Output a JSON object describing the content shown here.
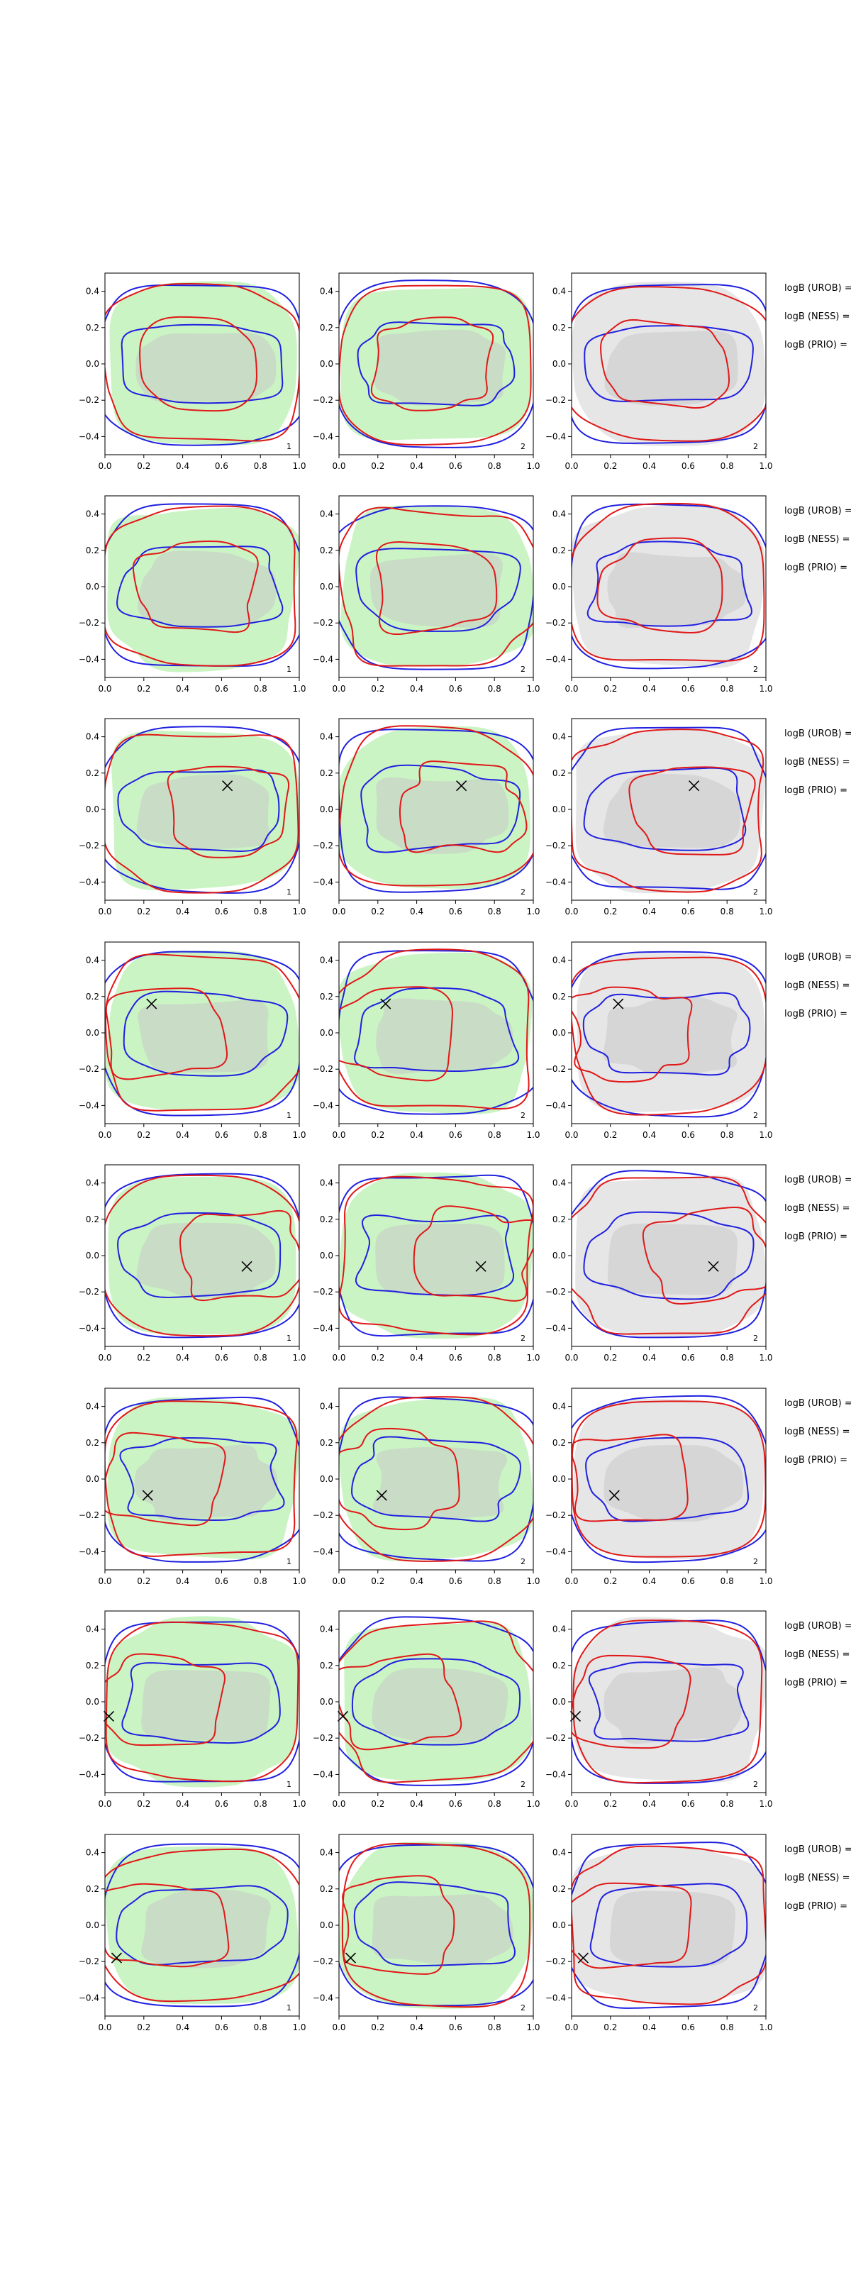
{
  "figure": {
    "background": "#ffffff",
    "colors": {
      "model_fill": "#b9f0b0",
      "ref_fill": "#c9c9c9",
      "model_outline": "#2020e0",
      "ref_outline": "#e01818",
      "frame": "#222222",
      "neutral_fill": "#e6e6e6"
    },
    "side_labels": [
      "logB (UROB) =",
      "logB (NESS) =",
      "logB (PRIO) ="
    ]
  },
  "chart_data": [
    {
      "type": "contour",
      "row": 1,
      "col": 1,
      "corner_label": "1",
      "xlim": [
        0,
        1
      ],
      "ylim": [
        -0.5,
        0.5
      ],
      "xticks": [
        "0.0",
        "0.2",
        "0.4",
        "0.6",
        "0.8",
        "1.0"
      ],
      "yticks": [
        "0.4",
        "0.2",
        "0.0",
        "−0.2",
        "−0.4"
      ],
      "panel_fill": "green",
      "marker": null
    },
    {
      "type": "contour",
      "row": 1,
      "col": 2,
      "corner_label": "2",
      "xlim": [
        0,
        1
      ],
      "ylim": [
        -0.5,
        0.5
      ],
      "xticks": [
        "0.0",
        "0.2",
        "0.4",
        "0.6",
        "0.8",
        "1.0"
      ],
      "yticks": [
        "0.4",
        "0.2",
        "0.0",
        "−0.2",
        "−0.4"
      ],
      "panel_fill": "green",
      "marker": null
    },
    {
      "type": "contour",
      "row": 1,
      "col": 3,
      "corner_label": "2",
      "xlim": [
        0,
        1
      ],
      "ylim": [
        -0.5,
        0.5
      ],
      "xticks": [
        "0.0",
        "0.2",
        "0.4",
        "0.6",
        "0.8",
        "1.0"
      ],
      "yticks": [
        "0.4",
        "0.2",
        "0.0",
        "−0.2",
        "−0.4"
      ],
      "panel_fill": "grey",
      "marker": null
    },
    {
      "type": "contour",
      "row": 2,
      "col": 1,
      "corner_label": "1",
      "xlim": [
        0,
        1
      ],
      "ylim": [
        -0.5,
        0.5
      ],
      "xticks": [
        "0.0",
        "0.2",
        "0.4",
        "0.6",
        "0.8",
        "1.0"
      ],
      "yticks": [
        "0.4",
        "0.2",
        "0.0",
        "−0.2",
        "−0.4"
      ],
      "panel_fill": "green",
      "marker": null
    },
    {
      "type": "contour",
      "row": 2,
      "col": 2,
      "corner_label": "2",
      "xlim": [
        0,
        1
      ],
      "ylim": [
        -0.5,
        0.5
      ],
      "xticks": [
        "0.0",
        "0.2",
        "0.4",
        "0.6",
        "0.8",
        "1.0"
      ],
      "yticks": [
        "0.4",
        "0.2",
        "0.0",
        "−0.2",
        "−0.4"
      ],
      "panel_fill": "green",
      "marker": null
    },
    {
      "type": "contour",
      "row": 2,
      "col": 3,
      "corner_label": "2",
      "xlim": [
        0,
        1
      ],
      "ylim": [
        -0.5,
        0.5
      ],
      "xticks": [
        "0.0",
        "0.2",
        "0.4",
        "0.6",
        "0.8",
        "1.0"
      ],
      "yticks": [
        "0.4",
        "0.2",
        "0.0",
        "−0.2",
        "−0.4"
      ],
      "panel_fill": "grey",
      "marker": null
    },
    {
      "type": "contour",
      "row": 3,
      "col": 1,
      "corner_label": "1",
      "xlim": [
        0,
        1
      ],
      "ylim": [
        -0.5,
        0.5
      ],
      "xticks": [
        "0.0",
        "0.2",
        "0.4",
        "0.6",
        "0.8",
        "1.0"
      ],
      "yticks": [
        "0.4",
        "0.2",
        "0.0",
        "−0.2",
        "−0.4"
      ],
      "panel_fill": "green",
      "marker": {
        "x": 0.63,
        "y": 0.13
      }
    },
    {
      "type": "contour",
      "row": 3,
      "col": 2,
      "corner_label": "2",
      "xlim": [
        0,
        1
      ],
      "ylim": [
        -0.5,
        0.5
      ],
      "xticks": [
        "0.0",
        "0.2",
        "0.4",
        "0.6",
        "0.8",
        "1.0"
      ],
      "yticks": [
        "0.4",
        "0.2",
        "0.0",
        "−0.2",
        "−0.4"
      ],
      "panel_fill": "green",
      "marker": {
        "x": 0.63,
        "y": 0.13
      }
    },
    {
      "type": "contour",
      "row": 3,
      "col": 3,
      "corner_label": "2",
      "xlim": [
        0,
        1
      ],
      "ylim": [
        -0.5,
        0.5
      ],
      "xticks": [
        "0.0",
        "0.2",
        "0.4",
        "0.6",
        "0.8",
        "1.0"
      ],
      "yticks": [
        "0.4",
        "0.2",
        "0.0",
        "−0.2",
        "−0.4"
      ],
      "panel_fill": "grey",
      "marker": {
        "x": 0.63,
        "y": 0.13
      }
    },
    {
      "type": "contour",
      "row": 4,
      "col": 1,
      "corner_label": "1",
      "xlim": [
        0,
        1
      ],
      "ylim": [
        -0.5,
        0.5
      ],
      "xticks": [
        "0.0",
        "0.2",
        "0.4",
        "0.6",
        "0.8",
        "1.0"
      ],
      "yticks": [
        "0.4",
        "0.2",
        "0.0",
        "−0.2",
        "−0.4"
      ],
      "panel_fill": "green",
      "marker": {
        "x": 0.24,
        "y": 0.16
      }
    },
    {
      "type": "contour",
      "row": 4,
      "col": 2,
      "corner_label": "2",
      "xlim": [
        0,
        1
      ],
      "ylim": [
        -0.5,
        0.5
      ],
      "xticks": [
        "0.0",
        "0.2",
        "0.4",
        "0.6",
        "0.8",
        "1.0"
      ],
      "yticks": [
        "0.4",
        "0.2",
        "0.0",
        "−0.2",
        "−0.4"
      ],
      "panel_fill": "green",
      "marker": {
        "x": 0.24,
        "y": 0.16
      }
    },
    {
      "type": "contour",
      "row": 4,
      "col": 3,
      "corner_label": "2",
      "xlim": [
        0,
        1
      ],
      "ylim": [
        -0.5,
        0.5
      ],
      "xticks": [
        "0.0",
        "0.2",
        "0.4",
        "0.6",
        "0.8",
        "1.0"
      ],
      "yticks": [
        "0.4",
        "0.2",
        "0.0",
        "−0.2",
        "−0.4"
      ],
      "panel_fill": "grey",
      "marker": {
        "x": 0.24,
        "y": 0.16
      }
    },
    {
      "type": "contour",
      "row": 5,
      "col": 1,
      "corner_label": "1",
      "xlim": [
        0,
        1
      ],
      "ylim": [
        -0.5,
        0.5
      ],
      "xticks": [
        "0.0",
        "0.2",
        "0.4",
        "0.6",
        "0.8",
        "1.0"
      ],
      "yticks": [
        "0.4",
        "0.2",
        "0.0",
        "−0.2",
        "−0.4"
      ],
      "panel_fill": "green",
      "marker": {
        "x": 0.73,
        "y": -0.06
      }
    },
    {
      "type": "contour",
      "row": 5,
      "col": 2,
      "corner_label": "2",
      "xlim": [
        0,
        1
      ],
      "ylim": [
        -0.5,
        0.5
      ],
      "xticks": [
        "0.0",
        "0.2",
        "0.4",
        "0.6",
        "0.8",
        "1.0"
      ],
      "yticks": [
        "0.4",
        "0.2",
        "0.0",
        "−0.2",
        "−0.4"
      ],
      "panel_fill": "green",
      "marker": {
        "x": 0.73,
        "y": -0.06
      }
    },
    {
      "type": "contour",
      "row": 5,
      "col": 3,
      "corner_label": "2",
      "xlim": [
        0,
        1
      ],
      "ylim": [
        -0.5,
        0.5
      ],
      "xticks": [
        "0.0",
        "0.2",
        "0.4",
        "0.6",
        "0.8",
        "1.0"
      ],
      "yticks": [
        "0.4",
        "0.2",
        "0.0",
        "−0.2",
        "−0.4"
      ],
      "panel_fill": "grey",
      "marker": {
        "x": 0.73,
        "y": -0.06
      }
    },
    {
      "type": "contour",
      "row": 6,
      "col": 1,
      "corner_label": "1",
      "xlim": [
        0,
        1
      ],
      "ylim": [
        -0.5,
        0.5
      ],
      "xticks": [
        "0.0",
        "0.2",
        "0.4",
        "0.6",
        "0.8",
        "1.0"
      ],
      "yticks": [
        "0.4",
        "0.2",
        "0.0",
        "−0.2",
        "−0.4"
      ],
      "panel_fill": "green",
      "marker": {
        "x": 0.22,
        "y": -0.09
      }
    },
    {
      "type": "contour",
      "row": 6,
      "col": 2,
      "corner_label": "2",
      "xlim": [
        0,
        1
      ],
      "ylim": [
        -0.5,
        0.5
      ],
      "xticks": [
        "0.0",
        "0.2",
        "0.4",
        "0.6",
        "0.8",
        "1.0"
      ],
      "yticks": [
        "0.4",
        "0.2",
        "0.0",
        "−0.2",
        "−0.4"
      ],
      "panel_fill": "green",
      "marker": {
        "x": 0.22,
        "y": -0.09
      }
    },
    {
      "type": "contour",
      "row": 6,
      "col": 3,
      "corner_label": "2",
      "xlim": [
        0,
        1
      ],
      "ylim": [
        -0.5,
        0.5
      ],
      "xticks": [
        "0.0",
        "0.2",
        "0.4",
        "0.6",
        "0.8",
        "1.0"
      ],
      "yticks": [
        "0.4",
        "0.2",
        "0.0",
        "−0.2",
        "−0.4"
      ],
      "panel_fill": "grey",
      "marker": {
        "x": 0.22,
        "y": -0.09
      }
    },
    {
      "type": "contour",
      "row": 7,
      "col": 1,
      "corner_label": "1",
      "xlim": [
        0,
        1
      ],
      "ylim": [
        -0.5,
        0.5
      ],
      "xticks": [
        "0.0",
        "0.2",
        "0.4",
        "0.6",
        "0.8",
        "1.0"
      ],
      "yticks": [
        "0.4",
        "0.2",
        "0.0",
        "−0.2",
        "−0.4"
      ],
      "panel_fill": "green",
      "marker": {
        "x": 0.02,
        "y": -0.08
      }
    },
    {
      "type": "contour",
      "row": 7,
      "col": 2,
      "corner_label": "2",
      "xlim": [
        0,
        1
      ],
      "ylim": [
        -0.5,
        0.5
      ],
      "xticks": [
        "0.0",
        "0.2",
        "0.4",
        "0.6",
        "0.8",
        "1.0"
      ],
      "yticks": [
        "0.4",
        "0.2",
        "0.0",
        "−0.2",
        "−0.4"
      ],
      "panel_fill": "green",
      "marker": {
        "x": 0.02,
        "y": -0.08
      }
    },
    {
      "type": "contour",
      "row": 7,
      "col": 3,
      "corner_label": "2",
      "xlim": [
        0,
        1
      ],
      "ylim": [
        -0.5,
        0.5
      ],
      "xticks": [
        "0.0",
        "0.2",
        "0.4",
        "0.6",
        "0.8",
        "1.0"
      ],
      "yticks": [
        "0.4",
        "0.2",
        "0.0",
        "−0.2",
        "−0.4"
      ],
      "panel_fill": "grey",
      "marker": {
        "x": 0.02,
        "y": -0.08
      }
    },
    {
      "type": "contour",
      "row": 8,
      "col": 1,
      "corner_label": "1",
      "xlim": [
        0,
        1
      ],
      "ylim": [
        -0.5,
        0.5
      ],
      "xticks": [
        "0.0",
        "0.2",
        "0.4",
        "0.6",
        "0.8",
        "1.0"
      ],
      "yticks": [
        "0.4",
        "0.2",
        "0.0",
        "−0.2",
        "−0.4"
      ],
      "panel_fill": "green",
      "marker": {
        "x": 0.06,
        "y": -0.18
      }
    },
    {
      "type": "contour",
      "row": 8,
      "col": 2,
      "corner_label": "2",
      "xlim": [
        0,
        1
      ],
      "ylim": [
        -0.5,
        0.5
      ],
      "xticks": [
        "0.0",
        "0.2",
        "0.4",
        "0.6",
        "0.8",
        "1.0"
      ],
      "yticks": [
        "0.4",
        "0.2",
        "0.0",
        "−0.2",
        "−0.4"
      ],
      "panel_fill": "green",
      "marker": {
        "x": 0.06,
        "y": -0.18
      }
    },
    {
      "type": "contour",
      "row": 8,
      "col": 3,
      "corner_label": "2",
      "xlim": [
        0,
        1
      ],
      "ylim": [
        -0.5,
        0.5
      ],
      "xticks": [
        "0.0",
        "0.2",
        "0.4",
        "0.6",
        "0.8",
        "1.0"
      ],
      "yticks": [
        "0.4",
        "0.2",
        "0.0",
        "−0.2",
        "−0.4"
      ],
      "panel_fill": "grey",
      "marker": {
        "x": 0.06,
        "y": -0.18
      }
    }
  ]
}
